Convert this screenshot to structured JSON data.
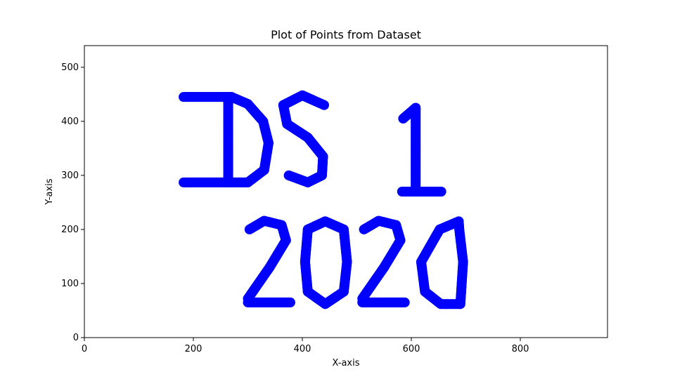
{
  "chart_data": {
    "type": "scatter",
    "title": "Plot of Points from Dataset",
    "xlabel": "X-axis",
    "ylabel": "Y-axis",
    "xlim": [
      0,
      960
    ],
    "ylim": [
      0,
      540
    ],
    "xticks": [
      0,
      200,
      400,
      600,
      800
    ],
    "yticks": [
      0,
      100,
      200,
      300,
      400,
      500
    ],
    "grid": false,
    "marker_color": "#0000ff",
    "series": [
      {
        "strokes": [
          [
            [
              182,
              445
            ],
            [
              270,
              445
            ],
            [
              300,
              432
            ],
            [
              328,
              400
            ],
            [
              338,
              360
            ],
            [
              330,
              310
            ],
            [
              300,
              287
            ],
            [
              270,
              287
            ],
            [
              182,
              287
            ]
          ],
          [
            [
              264,
              442
            ],
            [
              264,
              292
            ]
          ],
          [
            [
              440,
              430
            ],
            [
              400,
              448
            ],
            [
              365,
              430
            ],
            [
              372,
              395
            ],
            [
              410,
              370
            ],
            [
              438,
              335
            ],
            [
              436,
              300
            ],
            [
              410,
              287
            ],
            [
              375,
              300
            ]
          ],
          [
            [
              608,
              270
            ],
            [
              608,
              425
            ],
            [
              585,
              405
            ]
          ],
          [
            [
              583,
              270
            ],
            [
              655,
              270
            ]
          ],
          [
            [
              303,
              200
            ],
            [
              330,
              216
            ],
            [
              362,
              208
            ],
            [
              370,
              180
            ],
            [
              340,
              130
            ],
            [
              300,
              72
            ]
          ],
          [
            [
              300,
              65
            ],
            [
              378,
              65
            ]
          ],
          [
            [
              442,
              215
            ],
            [
              410,
              200
            ],
            [
              405,
              140
            ],
            [
              410,
              85
            ],
            [
              442,
              62
            ],
            [
              476,
              85
            ],
            [
              482,
              140
            ],
            [
              476,
              200
            ],
            [
              442,
              215
            ]
          ],
          [
            [
              513,
              200
            ],
            [
              540,
              216
            ],
            [
              572,
              208
            ],
            [
              580,
              180
            ],
            [
              550,
              130
            ],
            [
              510,
              72
            ]
          ],
          [
            [
              510,
              65
            ],
            [
              588,
              65
            ]
          ],
          [
            [
              687,
              215
            ],
            [
              652,
              200
            ],
            [
              618,
              140
            ],
            [
              625,
              85
            ],
            [
              654,
              62
            ],
            [
              690,
              62
            ],
            [
              695,
              140
            ],
            [
              688,
              200
            ],
            [
              687,
              215
            ]
          ]
        ]
      }
    ]
  }
}
